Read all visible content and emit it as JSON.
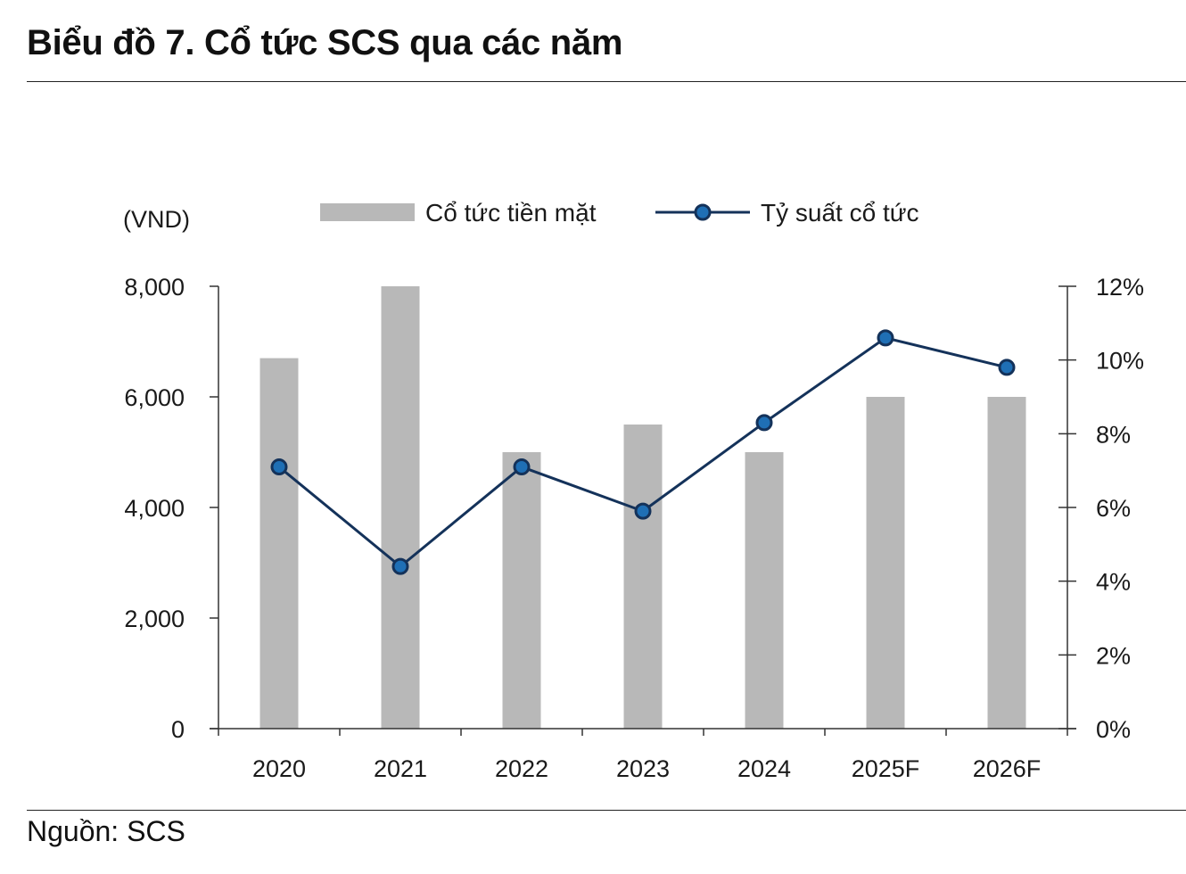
{
  "title": "Biểu đồ 7. Cổ tức SCS qua các năm",
  "source": "Nguồn: SCS",
  "colors": {
    "bar": "#b8b8b8",
    "line": "#14325a",
    "marker": "#1f6fb5",
    "axis": "#333333"
  },
  "chart_data": {
    "type": "bar",
    "categories": [
      "2020",
      "2021",
      "2022",
      "2023",
      "2024",
      "2025F",
      "2026F"
    ],
    "series": [
      {
        "name": "Cổ tức tiền mặt",
        "type": "bar",
        "axis": "left",
        "values": [
          6700,
          8000,
          5000,
          5500,
          5000,
          6000,
          6000
        ]
      },
      {
        "name": "Tỷ suất cổ tức",
        "type": "line",
        "axis": "right",
        "values": [
          7.1,
          4.4,
          7.1,
          5.9,
          8.3,
          10.6,
          9.8
        ]
      }
    ],
    "y_left": {
      "label": "(VND)",
      "min": 0,
      "max": 8000,
      "ticks": [
        "0",
        "2,000",
        "4,000",
        "6,000",
        "8,000"
      ],
      "tick_values": [
        0,
        2000,
        4000,
        6000,
        8000
      ]
    },
    "y_right": {
      "min": 0,
      "max": 12,
      "ticks": [
        "0%",
        "2%",
        "4%",
        "6%",
        "8%",
        "10%",
        "12%"
      ],
      "tick_values": [
        0,
        2,
        4,
        6,
        8,
        10,
        12
      ]
    },
    "legend": {
      "position": "top",
      "bar_label": "Cổ tức tiền mặt",
      "line_label": "Tỷ suất cổ tức"
    },
    "grid": false
  }
}
